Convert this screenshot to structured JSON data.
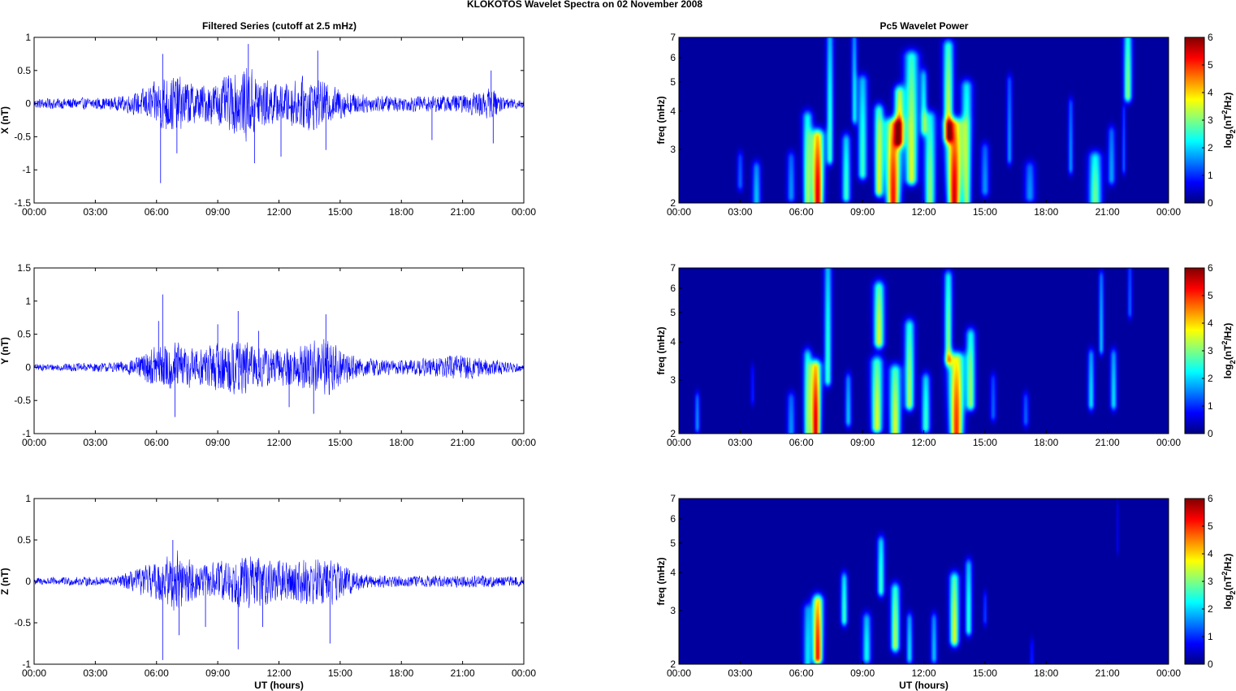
{
  "figure": {
    "title": "KLOKOTOS Wavelet Spectra on 02 November  2008",
    "left_title": "Filtered Series (cutoff at 2.5 mHz)",
    "right_title": "Pc5 Wavelet Power",
    "xlabel": "UT (hours)",
    "colorbar_label": "log2(nT2/Hz)"
  },
  "chart_data": [
    {
      "type": "line",
      "component": "X",
      "ylabel": "X (nT)",
      "xlabel": "",
      "xticks": [
        "00:00",
        "03:00",
        "06:00",
        "09:00",
        "12:00",
        "15:00",
        "18:00",
        "21:00",
        "00:00"
      ],
      "xlim_hours": [
        0,
        24
      ],
      "ylim": [
        -1.5,
        1
      ],
      "yticks": [
        "1",
        "0.5",
        "0",
        "-0.5",
        "-1",
        "-1.5"
      ],
      "color": "#0000ff",
      "envelope": [
        [
          0,
          0.08
        ],
        [
          4,
          0.1
        ],
        [
          5,
          0.18
        ],
        [
          6,
          0.35
        ],
        [
          6.4,
          0.5
        ],
        [
          7,
          0.45
        ],
        [
          8,
          0.3
        ],
        [
          9,
          0.35
        ],
        [
          10.5,
          0.6
        ],
        [
          11.3,
          0.4
        ],
        [
          12,
          0.3
        ],
        [
          13.5,
          0.45
        ],
        [
          14.5,
          0.3
        ],
        [
          16,
          0.15
        ],
        [
          18,
          0.12
        ],
        [
          21,
          0.15
        ],
        [
          22.5,
          0.25
        ],
        [
          23,
          0.1
        ],
        [
          24,
          0.08
        ]
      ],
      "spikes": [
        [
          6.2,
          -1.2
        ],
        [
          6.3,
          0.75
        ],
        [
          10.5,
          0.9
        ],
        [
          10.8,
          -0.9
        ],
        [
          12.1,
          -0.8
        ],
        [
          13.9,
          0.8
        ],
        [
          14.3,
          -0.7
        ],
        [
          7,
          -0.75
        ],
        [
          22.5,
          -0.6
        ],
        [
          22.4,
          0.5
        ],
        [
          19.5,
          -0.55
        ]
      ]
    },
    {
      "type": "line",
      "component": "Y",
      "ylabel": "Y (nT)",
      "xlabel": "",
      "xticks": [
        "00:00",
        "03:00",
        "06:00",
        "09:00",
        "12:00",
        "15:00",
        "18:00",
        "21:00",
        "00:00"
      ],
      "xlim_hours": [
        0,
        24
      ],
      "ylim": [
        -1,
        1.5
      ],
      "yticks": [
        "1.5",
        "1",
        "0.5",
        "0",
        "-0.5",
        "-1"
      ],
      "color": "#0000ff",
      "envelope": [
        [
          0,
          0.05
        ],
        [
          4,
          0.08
        ],
        [
          5,
          0.15
        ],
        [
          6,
          0.35
        ],
        [
          7,
          0.4
        ],
        [
          8,
          0.3
        ],
        [
          9,
          0.4
        ],
        [
          10,
          0.45
        ],
        [
          11,
          0.35
        ],
        [
          12,
          0.3
        ],
        [
          13,
          0.35
        ],
        [
          14.3,
          0.5
        ],
        [
          15,
          0.3
        ],
        [
          16,
          0.15
        ],
        [
          18,
          0.12
        ],
        [
          21,
          0.2
        ],
        [
          22,
          0.15
        ],
        [
          24,
          0.06
        ]
      ],
      "spikes": [
        [
          6.3,
          1.1
        ],
        [
          6.9,
          -0.75
        ],
        [
          10,
          0.85
        ],
        [
          14.3,
          0.8
        ],
        [
          13.7,
          -0.7
        ],
        [
          6.1,
          0.7
        ],
        [
          9,
          0.65
        ],
        [
          11,
          0.55
        ],
        [
          12.5,
          -0.6
        ]
      ]
    },
    {
      "type": "line",
      "component": "Z",
      "ylabel": "Z (nT)",
      "xlabel": "UT (hours)",
      "xticks": [
        "00:00",
        "03:00",
        "06:00",
        "09:00",
        "12:00",
        "15:00",
        "18:00",
        "21:00",
        "00:00"
      ],
      "xlim_hours": [
        0,
        24
      ],
      "ylim": [
        -1,
        1
      ],
      "yticks": [
        "1",
        "0.5",
        "0",
        "-0.5",
        "-1"
      ],
      "color": "#0000ff",
      "envelope": [
        [
          0,
          0.05
        ],
        [
          4,
          0.06
        ],
        [
          5,
          0.15
        ],
        [
          6,
          0.25
        ],
        [
          7,
          0.4
        ],
        [
          8,
          0.2
        ],
        [
          9,
          0.25
        ],
        [
          10.5,
          0.35
        ],
        [
          12,
          0.25
        ],
        [
          13.5,
          0.3
        ],
        [
          14.5,
          0.3
        ],
        [
          16,
          0.1
        ],
        [
          18,
          0.07
        ],
        [
          21,
          0.08
        ],
        [
          22,
          0.08
        ],
        [
          24,
          0.06
        ]
      ],
      "spikes": [
        [
          6.3,
          -0.95
        ],
        [
          6.8,
          0.5
        ],
        [
          7.1,
          -0.65
        ],
        [
          10,
          -0.82
        ],
        [
          14.5,
          -0.75
        ],
        [
          11.2,
          -0.55
        ],
        [
          8.4,
          -0.55
        ]
      ]
    },
    {
      "type": "heatmap",
      "component": "X",
      "ylabel": "freq (mHz)",
      "xlabel": "",
      "xticks": [
        "00:00",
        "03:00",
        "06:00",
        "09:00",
        "12:00",
        "15:00",
        "18:00",
        "21:00",
        "00:00"
      ],
      "yticks": [
        "7",
        "6",
        "5",
        "4",
        "3",
        "2"
      ],
      "ylim_mhz": [
        2,
        7
      ],
      "y_scale": "log",
      "color_range": [
        0,
        6
      ],
      "colorbar_ticks": [
        "6",
        "5",
        "4",
        "3",
        "2",
        "1",
        "0"
      ],
      "blobs": [
        [
          6.8,
          2.0,
          3.3,
          0.25,
          1.6,
          5.5
        ],
        [
          6.3,
          2.0,
          3.8,
          0.2,
          1.5,
          3
        ],
        [
          10.5,
          2.0,
          3.6,
          0.3,
          2.0,
          5.2
        ],
        [
          10.8,
          3.2,
          4.6,
          0.2,
          1.4,
          4
        ],
        [
          11.4,
          2.4,
          6.0,
          0.25,
          1.5,
          3.5
        ],
        [
          13.5,
          2.0,
          3.6,
          0.3,
          2.0,
          5.5
        ],
        [
          13.2,
          3.3,
          6.5,
          0.18,
          1.5,
          3.5
        ],
        [
          14.1,
          2.0,
          4.8,
          0.2,
          1.6,
          3
        ],
        [
          7.4,
          2.8,
          7.0,
          0.15,
          1.2,
          2.5
        ],
        [
          8.2,
          2.1,
          3.2,
          0.2,
          1.2,
          2.5
        ],
        [
          9.0,
          2.5,
          5.0,
          0.2,
          1.3,
          2.5
        ],
        [
          9.8,
          2.2,
          4.0,
          0.2,
          1.4,
          3.5
        ],
        [
          12.3,
          2.0,
          3.8,
          0.25,
          1.4,
          3
        ],
        [
          12.0,
          3.5,
          5.2,
          0.15,
          1.2,
          2.2
        ],
        [
          8.6,
          3.8,
          7.0,
          0.12,
          1.2,
          2
        ],
        [
          3.8,
          2.0,
          2.6,
          0.2,
          1.1,
          1.8
        ],
        [
          3.0,
          2.3,
          2.8,
          0.15,
          1,
          1.2
        ],
        [
          5.5,
          2.1,
          2.8,
          0.2,
          1.1,
          1.5
        ],
        [
          15.0,
          2.2,
          3.0,
          0.2,
          1.1,
          1.5
        ],
        [
          16.2,
          2.8,
          5.0,
          0.12,
          1.3,
          1.5
        ],
        [
          17.2,
          2.1,
          2.6,
          0.25,
          1.1,
          1.5
        ],
        [
          19.2,
          2.6,
          4.2,
          0.12,
          1.2,
          1.5
        ],
        [
          20.4,
          2.0,
          2.8,
          0.3,
          1.2,
          2.8
        ],
        [
          21.2,
          2.4,
          3.4,
          0.18,
          1.1,
          1.6
        ],
        [
          22.0,
          4.5,
          7.0,
          0.15,
          1.4,
          3
        ],
        [
          21.8,
          2.6,
          4.0,
          0.1,
          1,
          1.2
        ]
      ]
    },
    {
      "type": "heatmap",
      "component": "Y",
      "ylabel": "freq (mHz)",
      "xlabel": "",
      "xticks": [
        "00:00",
        "03:00",
        "06:00",
        "09:00",
        "12:00",
        "15:00",
        "18:00",
        "21:00",
        "00:00"
      ],
      "yticks": [
        "7",
        "6",
        "5",
        "4",
        "3",
        "2"
      ],
      "ylim_mhz": [
        2,
        7
      ],
      "y_scale": "log",
      "color_range": [
        0,
        6
      ],
      "colorbar_ticks": [
        "6",
        "5",
        "4",
        "3",
        "2",
        "1",
        "0"
      ],
      "blobs": [
        [
          6.7,
          2.0,
          3.3,
          0.22,
          1.6,
          5.5
        ],
        [
          6.3,
          2.0,
          3.6,
          0.18,
          1.4,
          2.8
        ],
        [
          7.3,
          3.0,
          7.0,
          0.15,
          1.3,
          2.5
        ],
        [
          9.7,
          2.1,
          3.4,
          0.25,
          1.5,
          3.5
        ],
        [
          9.8,
          4.0,
          6.0,
          0.2,
          1.4,
          3.5
        ],
        [
          10.6,
          2.0,
          3.2,
          0.25,
          1.5,
          3.5
        ],
        [
          11.3,
          2.5,
          4.5,
          0.2,
          1.4,
          3.2
        ],
        [
          12.1,
          2.1,
          3.0,
          0.2,
          1.2,
          2.5
        ],
        [
          13.6,
          2.0,
          3.5,
          0.3,
          1.8,
          5
        ],
        [
          13.2,
          3.5,
          6.5,
          0.15,
          1.4,
          3
        ],
        [
          14.3,
          2.5,
          4.2,
          0.2,
          1.3,
          3
        ],
        [
          0.9,
          2.1,
          2.6,
          0.12,
          1.1,
          1.5
        ],
        [
          3.6,
          2.6,
          3.2,
          0.1,
          1,
          0.8
        ],
        [
          5.5,
          2.0,
          2.6,
          0.2,
          1.1,
          1.5
        ],
        [
          8.3,
          2.2,
          3.0,
          0.15,
          1.2,
          1.8
        ],
        [
          15.4,
          2.3,
          3.0,
          0.15,
          1.1,
          1.2
        ],
        [
          17.0,
          2.2,
          2.6,
          0.15,
          1.1,
          1.2
        ],
        [
          20.2,
          2.5,
          3.6,
          0.15,
          1.2,
          2
        ],
        [
          21.3,
          2.5,
          3.6,
          0.15,
          1.2,
          2
        ],
        [
          20.7,
          3.8,
          6.5,
          0.1,
          1.3,
          1.8
        ],
        [
          22.1,
          5.0,
          7.0,
          0.1,
          1.2,
          1.2
        ]
      ]
    },
    {
      "type": "heatmap",
      "component": "Z",
      "ylabel": "freq (mHz)",
      "xlabel": "UT (hours)",
      "xticks": [
        "00:00",
        "03:00",
        "06:00",
        "09:00",
        "12:00",
        "15:00",
        "18:00",
        "21:00",
        "00:00"
      ],
      "yticks": [
        "7",
        "6",
        "5",
        "4",
        "3",
        "2"
      ],
      "ylim_mhz": [
        2,
        7
      ],
      "y_scale": "log",
      "color_range": [
        0,
        6
      ],
      "colorbar_ticks": [
        "6",
        "5",
        "4",
        "3",
        "2",
        "1",
        "0"
      ],
      "blobs": [
        [
          6.8,
          2.1,
          3.2,
          0.22,
          1.5,
          5.2
        ],
        [
          6.3,
          2.0,
          3.0,
          0.2,
          1.4,
          2
        ],
        [
          8.1,
          2.8,
          3.8,
          0.15,
          1.2,
          2.5
        ],
        [
          9.2,
          2.1,
          2.8,
          0.2,
          1.2,
          2.2
        ],
        [
          9.9,
          3.5,
          5.0,
          0.15,
          1.3,
          2.5
        ],
        [
          10.6,
          2.3,
          3.5,
          0.2,
          1.3,
          3.2
        ],
        [
          11.3,
          2.1,
          2.8,
          0.15,
          1.2,
          2
        ],
        [
          12.5,
          2.1,
          2.8,
          0.15,
          1.2,
          1.8
        ],
        [
          13.5,
          2.4,
          3.8,
          0.2,
          1.4,
          3.5
        ],
        [
          14.2,
          2.6,
          4.2,
          0.15,
          1.3,
          2.4
        ],
        [
          15.0,
          2.8,
          3.3,
          0.1,
          1,
          1
        ],
        [
          17.3,
          2.0,
          2.3,
          0.1,
          1,
          0.8
        ],
        [
          21.5,
          4.8,
          6.5,
          0.05,
          1.1,
          0.6
        ]
      ]
    }
  ]
}
